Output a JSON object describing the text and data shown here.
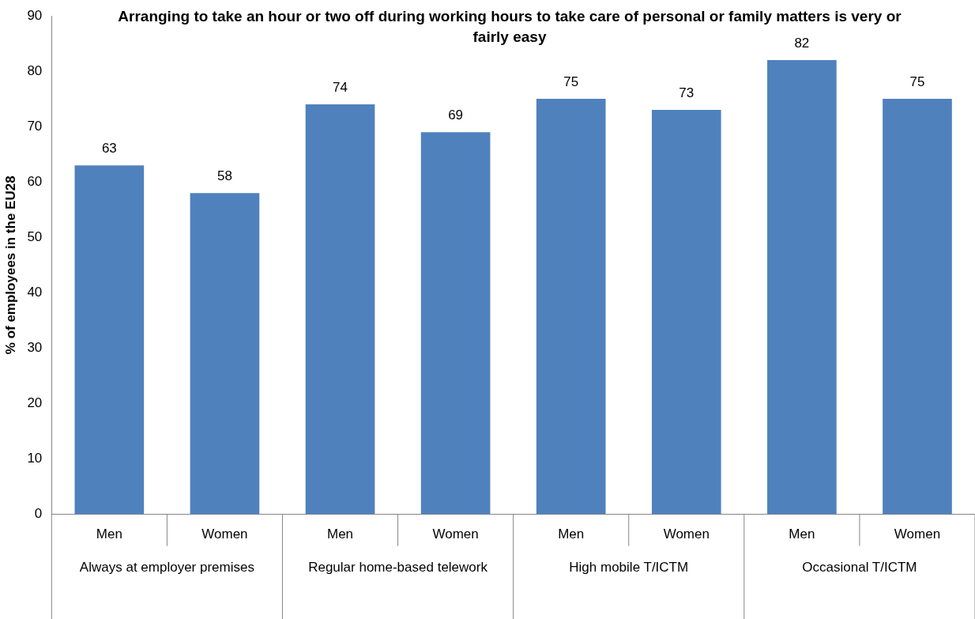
{
  "chart_data": {
    "type": "bar",
    "title": "Arranging to take an hour or two off during working hours to take care of personal or family matters is very or fairly easy",
    "ylabel": "% of employees in the EU28",
    "categories": [
      "Men",
      "Women",
      "Men",
      "Women",
      "Men",
      "Women",
      "Men",
      "Women"
    ],
    "values": [
      63,
      58,
      74,
      69,
      75,
      73,
      82,
      75
    ],
    "color": "#4f81bd",
    "annotations": [
      "Always at employer premises",
      "Regular home-based telework",
      "High mobile T/ICTM",
      "Occasional T/ICTM"
    ],
    "ylim": [
      0,
      90
    ],
    "yticks": [
      0,
      10,
      20,
      30,
      40,
      50,
      60,
      70,
      80,
      90
    ],
    "grid": false,
    "data_labels": true,
    "legend": false
  }
}
